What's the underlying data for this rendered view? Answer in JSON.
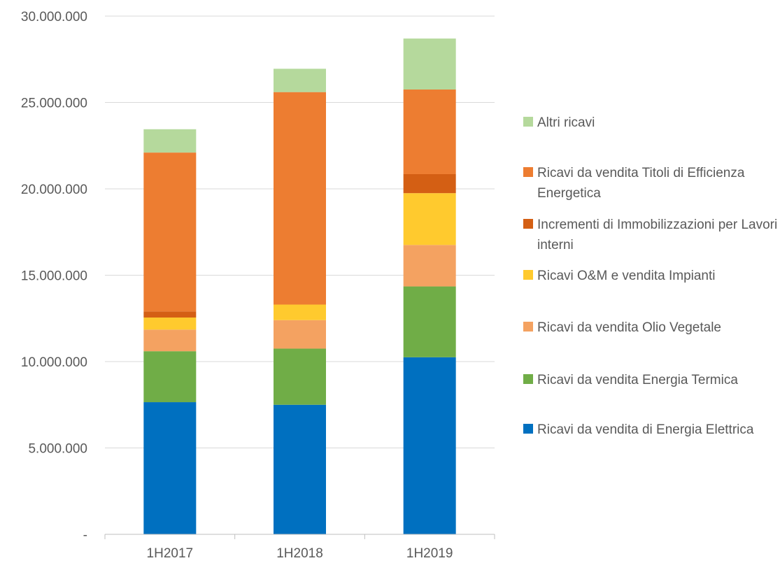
{
  "chart_data": {
    "type": "bar",
    "stacked": true,
    "categories": [
      "1H2017",
      "1H2018",
      "1H2019"
    ],
    "ylim": [
      0,
      30000000
    ],
    "y_ticks": [
      {
        "value": 0,
        "label": "-"
      },
      {
        "value": 5000000,
        "label": "5.000.000"
      },
      {
        "value": 10000000,
        "label": "10.000.000"
      },
      {
        "value": 15000000,
        "label": "15.000.000"
      },
      {
        "value": 20000000,
        "label": "20.000.000"
      },
      {
        "value": 25000000,
        "label": "25.000.000"
      },
      {
        "value": 30000000,
        "label": "30.000.000"
      }
    ],
    "legend_position": "right",
    "grid": true,
    "series": [
      {
        "name": "Ricavi da vendita di Energia Elettrica",
        "color": "#0070C0",
        "values": [
          7650000,
          7500000,
          10250000
        ]
      },
      {
        "name": "Ricavi da vendita Energia Termica",
        "color": "#70AD47",
        "values": [
          2950000,
          3250000,
          4100000
        ]
      },
      {
        "name": "Ricavi da vendita Olio Vegetale",
        "color": "#F4A261",
        "values": [
          1250000,
          1650000,
          2400000
        ]
      },
      {
        "name": "Ricavi O&M e vendita Impianti",
        "color": "#FFCA2E",
        "values": [
          700000,
          900000,
          3000000
        ]
      },
      {
        "name": "Incrementi di Immobilizzazioni per Lavori interni",
        "color": "#D45F14",
        "values": [
          350000,
          0,
          1100000
        ]
      },
      {
        "name": "Ricavi da vendita Titoli di Efficienza Energetica",
        "color": "#ED7D31",
        "values": [
          9200000,
          12300000,
          4900000
        ]
      },
      {
        "name": "Altri ricavi",
        "color": "#B5D99C",
        "values": [
          1350000,
          1350000,
          2950000
        ]
      }
    ]
  }
}
